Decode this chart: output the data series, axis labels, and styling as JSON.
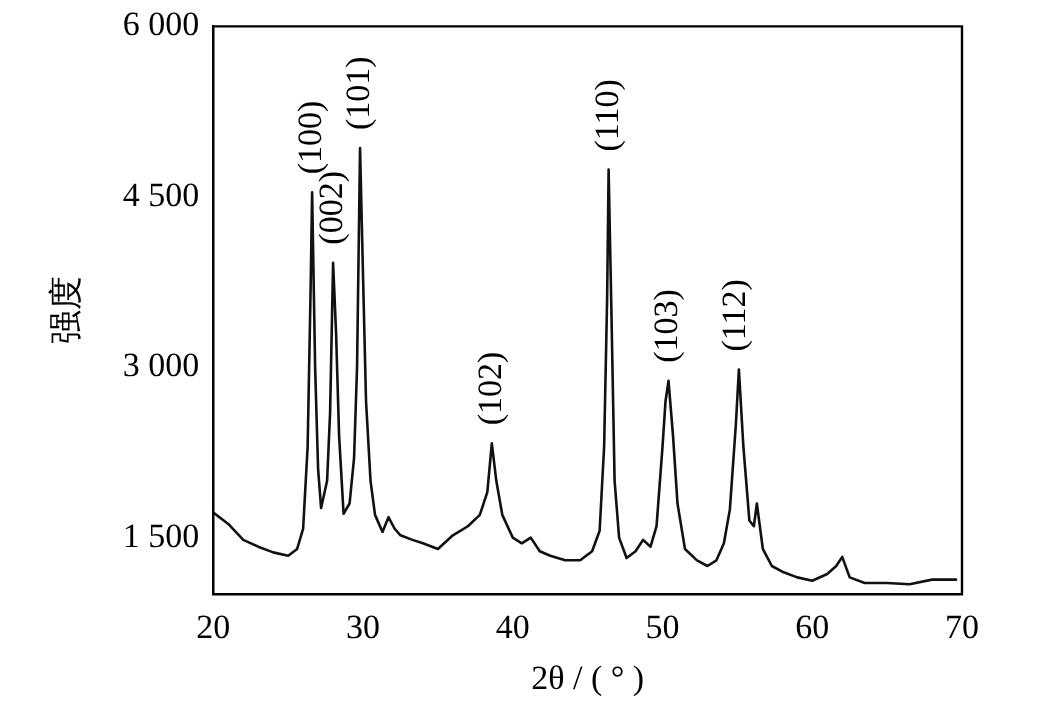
{
  "chart_data": {
    "type": "line",
    "xlabel": "2θ / ( ° )",
    "ylabel": "强度",
    "xlim": [
      20,
      70
    ],
    "xticks": [
      20,
      30,
      40,
      50,
      60,
      70
    ],
    "ylim": [
      1000,
      6000
    ],
    "yticks": [
      {
        "value": 1500,
        "label": "1 500"
      },
      {
        "value": 3000,
        "label": "3 000"
      },
      {
        "value": 4500,
        "label": "4 500"
      },
      {
        "value": 6000,
        "label": "6 000"
      }
    ],
    "grid": false,
    "legend": false,
    "marker": "none",
    "line_style": "solid",
    "series": [
      {
        "color": "#111111",
        "x": [
          20,
          21,
          22,
          23,
          24,
          25,
          25.6,
          26,
          26.3,
          26.5,
          26.6,
          26.8,
          27,
          27.2,
          27.6,
          27.8,
          28,
          28.2,
          28.4,
          28.7,
          29.1,
          29.4,
          29.6,
          29.8,
          30,
          30.2,
          30.5,
          30.8,
          31.3,
          31.7,
          32.1,
          32.5,
          33.3,
          34,
          35,
          36,
          37,
          37.8,
          38.3,
          38.6,
          38.9,
          39.3,
          40,
          40.6,
          41.2,
          41.8,
          42.5,
          43.5,
          44.5,
          45.3,
          45.8,
          46.1,
          46.3,
          46.4,
          46.6,
          46.8,
          47.1,
          47.6,
          48.2,
          48.7,
          49.2,
          49.6,
          50,
          50.2,
          50.4,
          50.7,
          51,
          51.5,
          52.3,
          53,
          53.6,
          54.1,
          54.5,
          54.9,
          55.1,
          55.4,
          55.8,
          56.1,
          56.3,
          56.7,
          57.3,
          58,
          59,
          60,
          61,
          61.6,
          62,
          62.5,
          63.5,
          65,
          66.5,
          68,
          69.6
        ],
        "values": [
          1720,
          1620,
          1480,
          1420,
          1370,
          1340,
          1400,
          1580,
          2300,
          3700,
          4540,
          3000,
          2100,
          1760,
          2000,
          2600,
          3920,
          3300,
          2400,
          1710,
          1800,
          2200,
          3000,
          4930,
          3800,
          2700,
          2000,
          1700,
          1550,
          1680,
          1580,
          1520,
          1480,
          1450,
          1400,
          1520,
          1600,
          1700,
          1900,
          2330,
          2000,
          1700,
          1500,
          1450,
          1500,
          1380,
          1340,
          1300,
          1300,
          1380,
          1560,
          2300,
          3600,
          4740,
          3400,
          2000,
          1500,
          1320,
          1380,
          1480,
          1420,
          1600,
          2300,
          2700,
          2880,
          2400,
          1800,
          1400,
          1300,
          1250,
          1300,
          1450,
          1750,
          2500,
          2980,
          2300,
          1650,
          1600,
          1800,
          1400,
          1250,
          1200,
          1150,
          1120,
          1180,
          1250,
          1330,
          1150,
          1100,
          1100,
          1090,
          1130,
          1130
        ]
      }
    ],
    "annotations": [
      {
        "text": "(100)",
        "x": 26.6,
        "y": 4540
      },
      {
        "text": "(002)",
        "x": 28,
        "y": 3920
      },
      {
        "text": "(101)",
        "x": 29.8,
        "y": 4930
      },
      {
        "text": "(102)",
        "x": 38.6,
        "y": 2330
      },
      {
        "text": "(110)",
        "x": 46.4,
        "y": 4740
      },
      {
        "text": "(103)",
        "x": 50.4,
        "y": 2880
      },
      {
        "text": "(112)",
        "x": 54.9,
        "y": 2980
      }
    ]
  }
}
